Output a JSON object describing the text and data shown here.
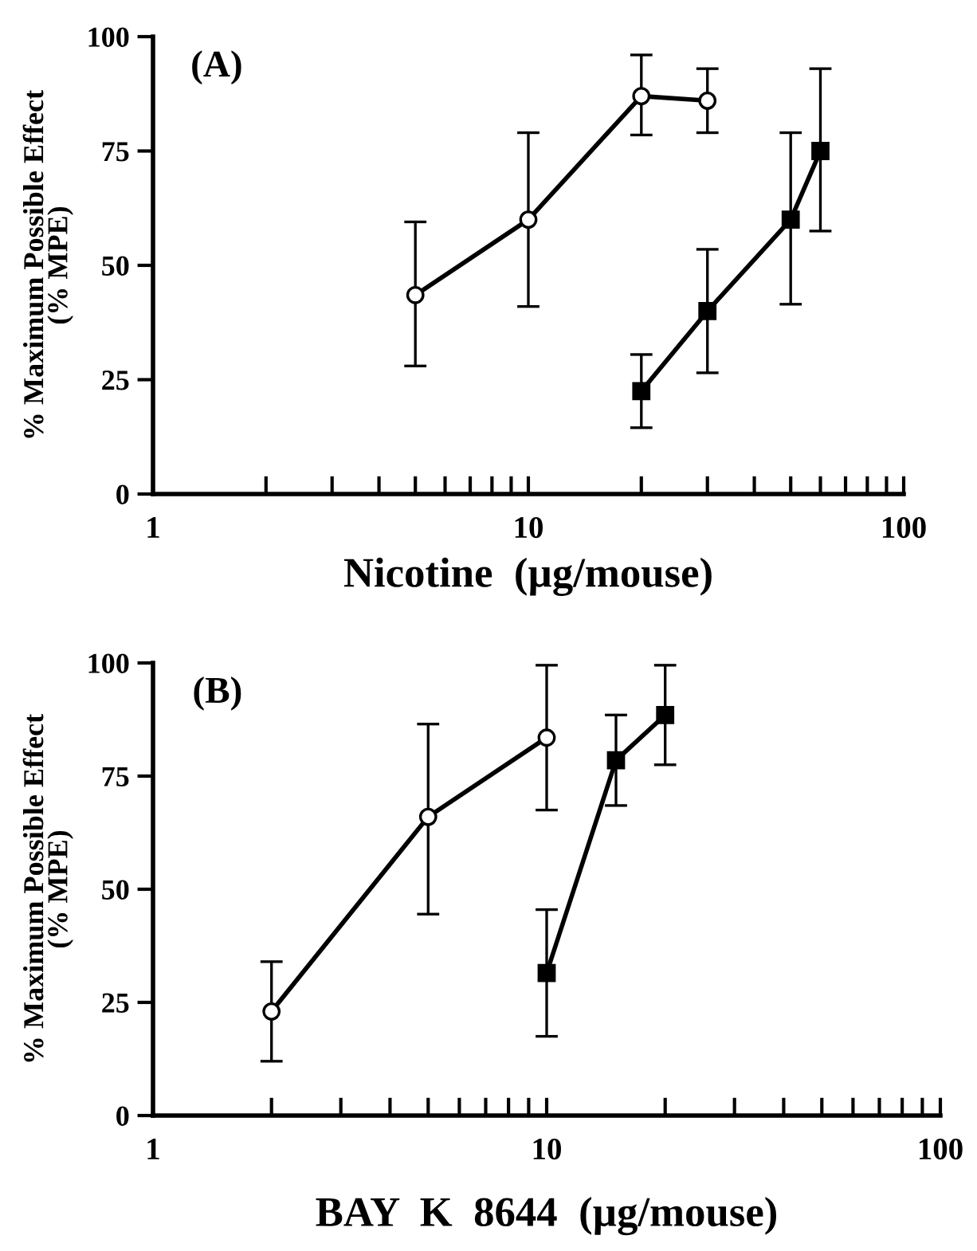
{
  "chart_data": [
    {
      "type": "line",
      "xlabel": "Nicotine  (µg/mouse)",
      "ylabel": "% Maximum Possible Effect\n(% MPE)",
      "annotations": [
        "(A)"
      ],
      "log": "x",
      "grid": false,
      "legend": false,
      "xlim": [
        1,
        100
      ],
      "xticks": [
        1,
        {
          "value": 2,
          "label": null
        },
        {
          "value": 3,
          "label": null
        },
        {
          "value": 4,
          "label": null
        },
        {
          "value": 5,
          "label": null
        },
        {
          "value": 6,
          "label": null
        },
        {
          "value": 7,
          "label": null
        },
        {
          "value": 8,
          "label": null
        },
        {
          "value": 9,
          "label": null
        },
        10,
        {
          "value": 20,
          "label": null
        },
        {
          "value": 30,
          "label": null
        },
        {
          "value": 40,
          "label": null
        },
        {
          "value": 50,
          "label": null
        },
        {
          "value": 60,
          "label": null
        },
        {
          "value": 70,
          "label": null
        },
        {
          "value": 80,
          "label": null
        },
        {
          "value": 90,
          "label": null
        },
        100
      ],
      "ylim": [
        0,
        100
      ],
      "yticks": [
        0,
        25,
        50,
        75,
        100
      ],
      "series": [
        {
          "color": "#000000",
          "marker": "circle",
          "x": [
            5,
            10,
            20,
            30
          ],
          "values": [
            43.5,
            60,
            87,
            86
          ],
          "errors": [
            [
              28,
              59.5
            ],
            [
              41,
              79
            ],
            [
              78.5,
              96
            ],
            [
              79,
              93
            ]
          ]
        },
        {
          "color": "#000000",
          "marker": "square",
          "x": [
            20,
            30,
            50,
            60
          ],
          "values": [
            22.5,
            40,
            60,
            75
          ],
          "errors": [
            [
              14.5,
              30.5
            ],
            [
              26.5,
              53.5
            ],
            [
              41.5,
              79
            ],
            [
              57.5,
              93
            ]
          ]
        }
      ]
    },
    {
      "type": "line",
      "xlabel": "BAY  K  8644  (µg/mouse)",
      "ylabel": "% Maximum Possible Effect\n(% MPE)",
      "annotations": [
        "(B)"
      ],
      "log": "x",
      "grid": false,
      "legend": false,
      "xlim": [
        1,
        100
      ],
      "xticks": [
        1,
        {
          "value": 2,
          "label": null
        },
        {
          "value": 3,
          "label": null
        },
        {
          "value": 4,
          "label": null
        },
        {
          "value": 5,
          "label": null
        },
        {
          "value": 6,
          "label": null
        },
        {
          "value": 7,
          "label": null
        },
        {
          "value": 8,
          "label": null
        },
        {
          "value": 9,
          "label": null
        },
        10,
        {
          "value": 20,
          "label": null
        },
        {
          "value": 30,
          "label": null
        },
        {
          "value": 40,
          "label": null
        },
        {
          "value": 50,
          "label": null
        },
        {
          "value": 60,
          "label": null
        },
        {
          "value": 70,
          "label": null
        },
        {
          "value": 80,
          "label": null
        },
        {
          "value": 90,
          "label": null
        },
        100
      ],
      "ylim": [
        0,
        100
      ],
      "yticks": [
        0,
        25,
        50,
        75,
        100
      ],
      "series": [
        {
          "color": "#000000",
          "marker": "circle",
          "x": [
            2,
            5,
            10
          ],
          "values": [
            23,
            66,
            83.5
          ],
          "errors": [
            [
              12,
              34
            ],
            [
              44.5,
              86.5
            ],
            [
              67.5,
              99.5
            ]
          ]
        },
        {
          "color": "#000000",
          "marker": "square",
          "x": [
            10,
            15,
            20
          ],
          "values": [
            31.5,
            78.5,
            88.5
          ],
          "errors": [
            [
              17.5,
              45.5
            ],
            [
              68.5,
              88.5
            ],
            [
              77.5,
              99.5
            ]
          ]
        }
      ]
    }
  ]
}
